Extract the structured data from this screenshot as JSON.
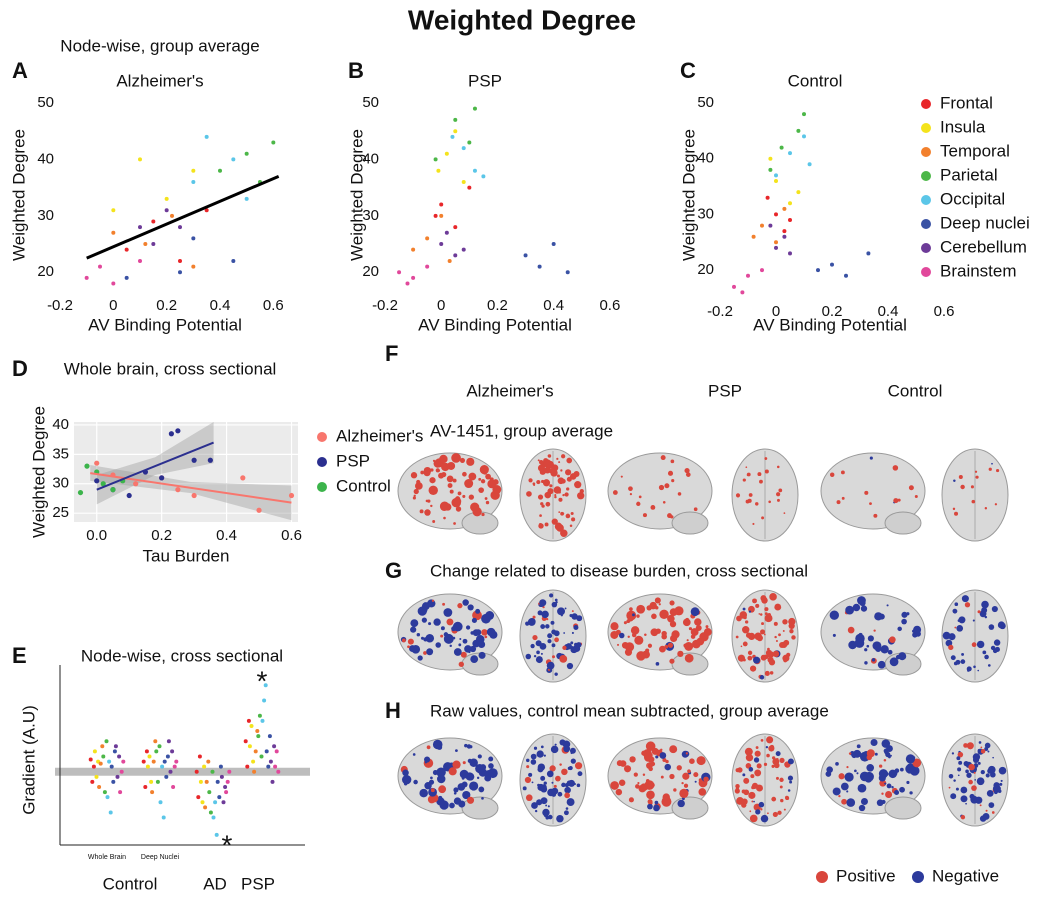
{
  "title": "Weighted Degree",
  "chart_data": [
    {
      "type": "scatter",
      "panel": "A",
      "title": "Node-wise, group average",
      "subtitle": "Alzheimer's",
      "xlabel": "AV Binding Potential",
      "ylabel": "Weighted Degree",
      "xlim": [
        -0.2,
        0.7
      ],
      "xticks": [
        -0.2,
        0,
        0.2,
        0.4,
        0.6
      ],
      "ylim": [
        16.5,
        50
      ],
      "yticks": [
        20,
        30,
        40,
        50
      ],
      "series": [
        {
          "color": "#e8262a",
          "x": [
            0.05,
            0.15,
            0.25,
            0.35
          ],
          "y": [
            24,
            29,
            22,
            31
          ]
        },
        {
          "color": "#f4e31c",
          "x": [
            0.1,
            0.2,
            0.0,
            0.3
          ],
          "y": [
            40,
            33,
            31,
            38
          ]
        },
        {
          "color": "#f2802d",
          "x": [
            0.0,
            0.12,
            0.22,
            0.3
          ],
          "y": [
            27,
            25,
            30,
            21
          ]
        },
        {
          "color": "#4cb748",
          "x": [
            0.4,
            0.5,
            0.55,
            0.6
          ],
          "y": [
            38,
            41,
            36,
            43
          ]
        },
        {
          "color": "#5bc6e8",
          "x": [
            0.35,
            0.45,
            0.5,
            0.3
          ],
          "y": [
            44,
            40,
            33,
            36
          ]
        },
        {
          "color": "#3a52a4",
          "x": [
            0.05,
            0.25,
            0.45,
            0.3
          ],
          "y": [
            19,
            20,
            22,
            26
          ]
        },
        {
          "color": "#6d3b98",
          "x": [
            0.1,
            0.2,
            0.15,
            0.25
          ],
          "y": [
            28,
            31,
            25,
            28
          ]
        },
        {
          "color": "#e1489b",
          "x": [
            -0.1,
            -0.05,
            0.0,
            0.1
          ],
          "y": [
            19,
            21,
            18,
            22
          ]
        }
      ],
      "fit": {
        "color": "#000000",
        "x": [
          -0.1,
          0.62
        ],
        "y": [
          22.5,
          37
        ]
      }
    },
    {
      "type": "scatter",
      "panel": "B",
      "title": "PSP",
      "xlabel": "AV Binding Potential",
      "ylabel": "Weighted Degree",
      "xlim": [
        -0.2,
        0.7
      ],
      "xticks": [
        -0.2,
        0,
        0.2,
        0.4,
        0.6
      ],
      "ylim": [
        16.5,
        50
      ],
      "yticks": [
        20,
        30,
        40,
        50
      ],
      "series": [
        {
          "color": "#e8262a",
          "x": [
            0.0,
            0.05,
            0.1,
            -0.02
          ],
          "y": [
            32,
            28,
            35,
            30
          ]
        },
        {
          "color": "#f4e31c",
          "x": [
            0.02,
            0.08,
            0.05,
            -0.01
          ],
          "y": [
            41,
            36,
            45,
            38
          ]
        },
        {
          "color": "#f2802d",
          "x": [
            -0.05,
            0.0,
            0.03,
            -0.1
          ],
          "y": [
            26,
            30,
            22,
            24
          ]
        },
        {
          "color": "#4cb748",
          "x": [
            0.05,
            0.1,
            -0.02,
            0.12
          ],
          "y": [
            47,
            43,
            40,
            49
          ]
        },
        {
          "color": "#5bc6e8",
          "x": [
            0.08,
            0.12,
            0.04,
            0.15
          ],
          "y": [
            42,
            38,
            44,
            37
          ]
        },
        {
          "color": "#3a52a4",
          "x": [
            0.3,
            0.35,
            0.4,
            0.45
          ],
          "y": [
            23,
            21,
            25,
            20
          ]
        },
        {
          "color": "#6d3b98",
          "x": [
            0.0,
            0.05,
            0.02,
            0.08
          ],
          "y": [
            25,
            23,
            27,
            24
          ]
        },
        {
          "color": "#e1489b",
          "x": [
            -0.15,
            -0.1,
            -0.05,
            -0.12
          ],
          "y": [
            20,
            19,
            21,
            18
          ]
        }
      ]
    },
    {
      "type": "scatter",
      "panel": "C",
      "title": "Control",
      "xlabel": "AV Binding Potential",
      "ylabel": "Weighted Degree",
      "xlim": [
        -0.2,
        0.7
      ],
      "xticks": [
        -0.2,
        0,
        0.2,
        0.4,
        0.6
      ],
      "ylim": [
        15,
        50
      ],
      "yticks": [
        20,
        30,
        40,
        50
      ],
      "legend": "right",
      "series": [
        {
          "name": "Frontal",
          "color": "#e8262a",
          "x": [
            0.0,
            0.03,
            -0.03,
            0.05
          ],
          "y": [
            30,
            27,
            33,
            29
          ]
        },
        {
          "name": "Insula",
          "color": "#f4e31c",
          "x": [
            0.0,
            0.05,
            -0.02,
            0.08
          ],
          "y": [
            36,
            32,
            40,
            34
          ]
        },
        {
          "name": "Temporal",
          "color": "#f2802d",
          "x": [
            -0.05,
            0.0,
            0.03,
            -0.08
          ],
          "y": [
            28,
            25,
            31,
            26
          ]
        },
        {
          "name": "Parietal",
          "color": "#4cb748",
          "x": [
            0.02,
            0.08,
            -0.02,
            0.1
          ],
          "y": [
            42,
            45,
            38,
            48
          ]
        },
        {
          "name": "Occipital",
          "color": "#5bc6e8",
          "x": [
            0.05,
            0.1,
            0.0,
            0.12
          ],
          "y": [
            41,
            44,
            37,
            39
          ]
        },
        {
          "name": "Deep nuclei",
          "color": "#3a52a4",
          "x": [
            0.15,
            0.2,
            0.25,
            0.33
          ],
          "y": [
            20,
            21,
            19,
            23
          ]
        },
        {
          "name": "Cerebellum",
          "color": "#6d3b98",
          "x": [
            0.0,
            0.03,
            -0.02,
            0.05
          ],
          "y": [
            24,
            26,
            28,
            23
          ]
        },
        {
          "name": "Brainstem",
          "color": "#e1489b",
          "x": [
            -0.15,
            -0.1,
            -0.12,
            -0.05
          ],
          "y": [
            17,
            19,
            16,
            20
          ]
        }
      ]
    },
    {
      "type": "scatter",
      "panel": "D",
      "title": "Whole brain, cross sectional",
      "xlabel": "Tau Burden",
      "ylabel": "Weighted Degree",
      "xlim": [
        -0.07,
        0.62
      ],
      "xticks": [
        {
          "value": 0,
          "label": "0.0"
        },
        0.2,
        0.4,
        0.6
      ],
      "ylim": [
        23.5,
        40.5
      ],
      "yticks": [
        25,
        30,
        35,
        40
      ],
      "grid": true,
      "legend": "right",
      "series": [
        {
          "name": "Alzheimer's",
          "color": "#f8766d",
          "x": [
            0.0,
            0.05,
            0.12,
            0.2,
            0.25,
            0.3,
            0.45,
            0.5,
            0.6
          ],
          "y": [
            33.5,
            31.5,
            30,
            31,
            29,
            28,
            31,
            25.5,
            28
          ],
          "fit": {
            "x": [
              -0.02,
              0.6
            ],
            "y": [
              31.8,
              26.8
            ],
            "band": {
              "x": [
                -0.02,
                0.29,
                0.6
              ],
              "lower": [
                30.5,
                28.4,
                23.8
              ],
              "upper": [
                33.2,
                30.3,
                29.7
              ]
            }
          }
        },
        {
          "name": "PSP",
          "color": "#2b2f8f",
          "x": [
            0.0,
            0.05,
            0.1,
            0.15,
            0.2,
            0.23,
            0.25,
            0.3,
            0.35
          ],
          "y": [
            30.5,
            29,
            28,
            32,
            31,
            38.5,
            39,
            34,
            34
          ],
          "fit": {
            "x": [
              0.0,
              0.36
            ],
            "y": [
              29,
              37
            ],
            "band": {
              "x": [
                0.0,
                0.18,
                0.36
              ],
              "lower": [
                26.5,
                31.5,
                33.5
              ],
              "upper": [
                31.5,
                34.5,
                40.5
              ]
            }
          }
        },
        {
          "name": "Control",
          "color": "#3cb44b",
          "x": [
            -0.05,
            -0.03,
            0.0,
            0.02,
            0.05,
            0.08
          ],
          "y": [
            28.5,
            33,
            32,
            30,
            29,
            30.5
          ]
        }
      ]
    },
    {
      "type": "strip",
      "panel": "E",
      "title": "Node-wise, cross sectional",
      "ylabel": "Gradient (A.U)",
      "ylim": [
        -0.72,
        1
      ],
      "reference": 0,
      "colors": [
        "#e8262a",
        "#f4e31c",
        "#f2802d",
        "#4cb748",
        "#5bc6e8",
        "#3a52a4",
        "#6d3b98",
        "#e1489b"
      ],
      "groups": [
        {
          "label": "Control",
          "clusters": [
            {
              "label": "Whole Brain",
              "values": [
                [
                  0.12,
                  -0.1,
                  0.05
                ],
                [
                  0.2,
                  -0.05,
                  0.1
                ],
                [
                  -0.15,
                  0.08,
                  0.25
                ],
                [
                  0.15,
                  -0.2,
                  0.3
                ],
                [
                  -0.25,
                  0.1,
                  -0.4
                ],
                [
                  0.05,
                  -0.1,
                  0.2
                ],
                [
                  0.25,
                  -0.05,
                  0.15
                ],
                [
                  -0.2,
                  0.0,
                  0.1
                ]
              ]
            },
            {
              "label": "Deep Nuclei",
              "values": [
                [
                  0.1,
                  -0.15,
                  0.2
                ],
                [
                  0.05,
                  0.15,
                  -0.1
                ],
                [
                  -0.2,
                  0.1,
                  0.3
                ],
                [
                  0.2,
                  -0.1,
                  0.25
                ],
                [
                  -0.3,
                  0.05,
                  -0.45
                ],
                [
                  0.1,
                  -0.05,
                  0.15
                ],
                [
                  0.3,
                  0.0,
                  0.2
                ],
                [
                  -0.15,
                  0.05,
                  0.1
                ]
              ]
            }
          ]
        },
        {
          "label": "AD",
          "clusters": [
            {
              "values": [
                [
                  0.0,
                  -0.25,
                  0.15
                ],
                [
                  -0.1,
                  -0.3,
                  0.05
                ],
                [
                  -0.35,
                  -0.1,
                  0.1
                ],
                [
                  -0.2,
                  -0.4,
                  0.0
                ],
                [
                  -0.45,
                  -0.3,
                  -0.62
                ],
                [
                  -0.1,
                  -0.25,
                  0.05
                ],
                [
                  -0.05,
                  -0.3,
                  -0.15
                ],
                [
                  -0.2,
                  -0.1,
                  0.0
                ]
              ],
              "marker": {
                "y": -0.68,
                "label": "*"
              }
            }
          ]
        },
        {
          "label": "PSP",
          "clusters": [
            {
              "values": [
                [
                  0.3,
                  0.05,
                  0.5
                ],
                [
                  0.25,
                  0.45,
                  0.1
                ],
                [
                  0.0,
                  0.2,
                  0.4
                ],
                [
                  0.35,
                  0.55,
                  0.15
                ],
                [
                  0.5,
                  0.7,
                  0.85
                ],
                [
                  0.2,
                  0.05,
                  0.35
                ],
                [
                  0.1,
                  -0.1,
                  0.25
                ],
                [
                  0.05,
                  0.2,
                  0.0
                ]
              ],
              "marker": {
                "y": 0.93,
                "label": "*"
              }
            }
          ]
        }
      ]
    }
  ],
  "brain_panels": {
    "columns": [
      "Alzheimer's",
      "PSP",
      "Control"
    ],
    "rows": [
      {
        "letter": "F",
        "title": "AV-1451, group average"
      },
      {
        "letter": "G",
        "title": "Change related to disease burden, cross sectional"
      },
      {
        "letter": "H",
        "title": "Raw values, control mean subtracted, group average"
      }
    ],
    "legend": [
      {
        "name": "Positive",
        "color": "#d9463c"
      },
      {
        "name": "Negative",
        "color": "#2c3a9c"
      }
    ]
  }
}
